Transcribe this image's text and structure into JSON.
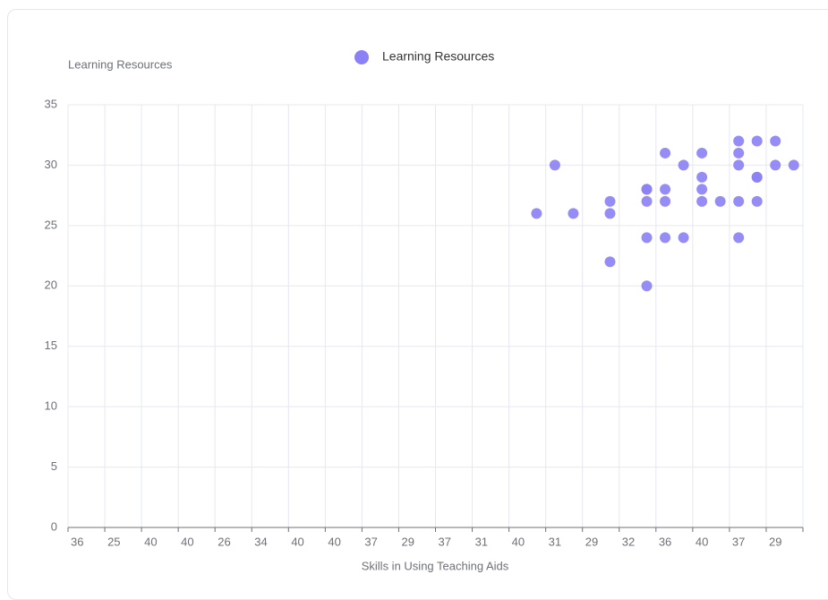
{
  "chart_data": {
    "type": "scatter",
    "y_axis_label": "Learning Resources",
    "x_axis_label": "Skills in Using Teaching Aids",
    "categories": [
      "36",
      null,
      "25",
      null,
      "40",
      null,
      "40",
      null,
      "26",
      null,
      "34",
      null,
      "40",
      null,
      "40",
      null,
      "37",
      null,
      "29",
      null,
      "37",
      null,
      "31",
      null,
      "40",
      null,
      "31",
      null,
      "29",
      null,
      "32",
      null,
      "36",
      null,
      "40",
      null,
      "37",
      null,
      "29",
      null
    ],
    "series": [
      {
        "name": "Learning Resources",
        "color": "#8b80f5",
        "x": [
          25,
          26,
          27,
          29,
          29,
          29,
          31,
          31,
          31,
          31,
          31,
          32,
          32,
          32,
          32,
          33,
          33,
          34,
          34,
          34,
          34,
          35,
          36,
          36,
          36,
          36,
          36,
          37,
          37,
          37,
          37,
          38,
          38,
          39
        ],
        "values": [
          26,
          30,
          26,
          27,
          26,
          22,
          28,
          28,
          27,
          24,
          20,
          31,
          28,
          27,
          24,
          30,
          24,
          31,
          29,
          28,
          27,
          27,
          32,
          31,
          30,
          27,
          24,
          32,
          29,
          29,
          27,
          32,
          30,
          30
        ]
      }
    ],
    "ylim": [
      0,
      35
    ],
    "yticks": [
      0,
      5,
      10,
      15,
      20,
      25,
      30,
      35
    ],
    "grid": true,
    "legend": "top"
  }
}
